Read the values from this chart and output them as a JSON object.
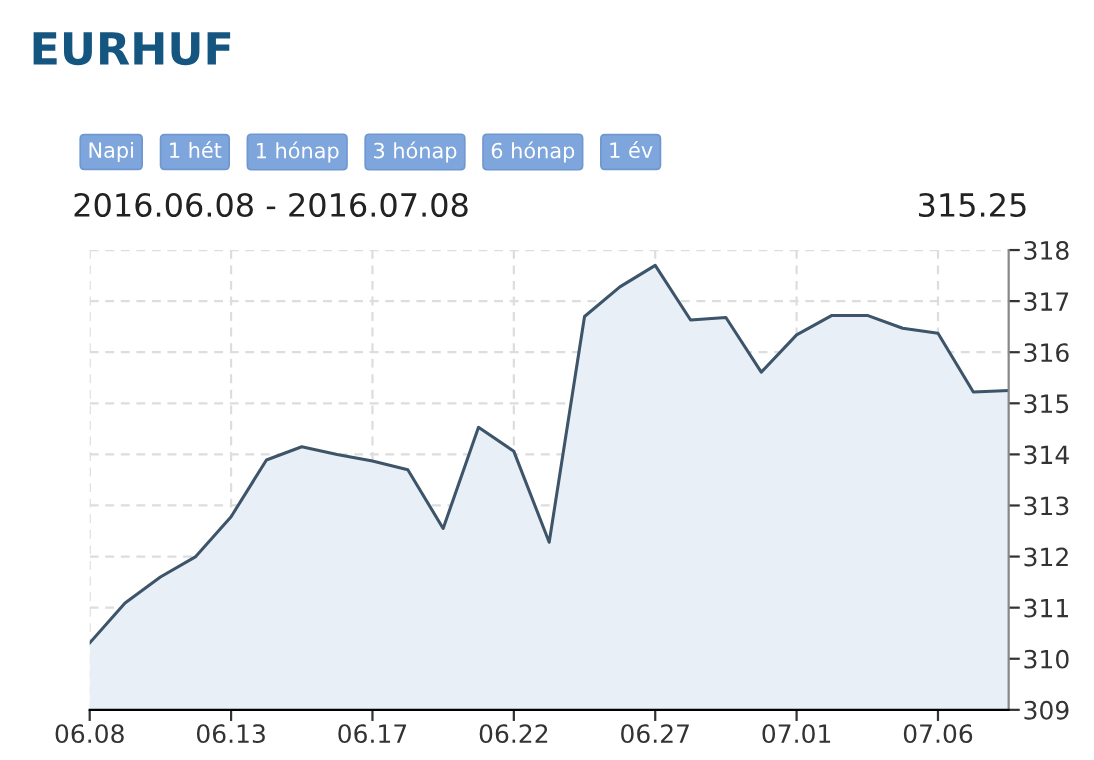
{
  "chart_data": {
    "type": "area",
    "title": "EURHUF",
    "subtitle": "2016.06.08 - 2016.07.08",
    "annotations": [
      "Napi",
      "1 hét",
      "1 hónap",
      "3 hónap",
      "6 hónap",
      "1 év",
      "315.25"
    ],
    "categories": [
      "06.08",
      null,
      null,
      null,
      "06.13",
      null,
      null,
      null,
      "06.17",
      null,
      null,
      null,
      "06.22",
      null,
      null,
      null,
      "06.27",
      null,
      null,
      null,
      "07.01",
      null,
      null,
      null,
      "07.06",
      null,
      null
    ],
    "series": [
      {
        "color": "#3d5469",
        "values": [
          310.31,
          311.09,
          311.6,
          312.0,
          312.78,
          313.89,
          314.15,
          314.0,
          313.87,
          313.7,
          312.55,
          314.53,
          314.06,
          312.28,
          316.7,
          317.28,
          317.7,
          316.63,
          316.68,
          315.61,
          316.34,
          316.72,
          316.72,
          316.47,
          316.37,
          315.22,
          315.25
        ]
      }
    ],
    "ylim": [
      309,
      318
    ],
    "yticks": [
      309,
      310,
      311,
      312,
      313,
      314,
      315,
      316,
      317,
      318
    ],
    "grid": true,
    "marker": "none",
    "line_style": "solid"
  }
}
